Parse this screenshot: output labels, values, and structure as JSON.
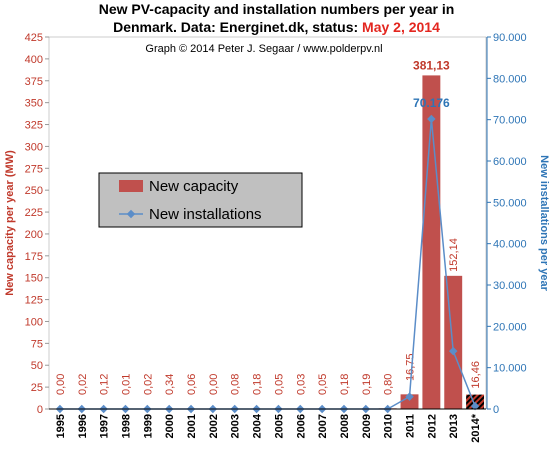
{
  "title_line1": "New PV-capacity and installation numbers per year in",
  "title_line2_prefix": "Denmark. Data: Energinet.dk, status:",
  "title_line2_date": "May 2, 2014",
  "credit": "Graph © 2014 Peter J. Segaar / www.polderpv.nl",
  "colors": {
    "bar": "#c0504d",
    "line": "#5b8dc8",
    "left_axis": "#c0392b",
    "right_axis": "#2e75b6",
    "plot_bg": "#ffffff",
    "legend_bg": "#c0c0c0"
  },
  "chart_data": {
    "type": "bar",
    "categories": [
      "1995",
      "1996",
      "1997",
      "1998",
      "1999",
      "2000",
      "2001",
      "2002",
      "2003",
      "2004",
      "2005",
      "2006",
      "2007",
      "2008",
      "2009",
      "2010",
      "2011",
      "2012",
      "2013",
      "2014*"
    ],
    "series": [
      {
        "name": "New capacity",
        "axis": "left",
        "type": "bar",
        "values": [
          0.0,
          0.02,
          0.12,
          0.01,
          0.02,
          0.34,
          0.06,
          0.0,
          0.08,
          0.18,
          0.05,
          0.03,
          0.05,
          0.18,
          0.19,
          0.8,
          16.75,
          381.13,
          152.14,
          16.46
        ],
        "labels": [
          "0,00",
          "0,02",
          "0,12",
          "0,01",
          "0,02",
          "0,34",
          "0,06",
          "0,00",
          "0,08",
          "0,18",
          "0,05",
          "0,03",
          "0,05",
          "0,18",
          "0,19",
          "0,80",
          "16,75",
          "381,13",
          "152,14",
          "16,46"
        ],
        "hatched_last": true
      },
      {
        "name": "New installations",
        "axis": "right",
        "type": "line",
        "values": [
          0,
          0,
          0,
          0,
          0,
          0,
          0,
          0,
          0,
          0,
          0,
          0,
          0,
          0,
          0,
          0,
          3000,
          70176,
          14000,
          700
        ],
        "highlight_label": "70.176",
        "highlight_index": 17
      }
    ],
    "ylabel": "New capacity per year (MW)",
    "y2label": "New installations per year",
    "ylim": [
      0,
      425
    ],
    "yticks": [
      "0",
      "25",
      "50",
      "75",
      "100",
      "125",
      "150",
      "175",
      "200",
      "225",
      "250",
      "275",
      "300",
      "325",
      "350",
      "375",
      "400",
      "425"
    ],
    "y2lim": [
      0,
      90000
    ],
    "y2ticks": [
      "0",
      "10.000",
      "20.000",
      "30.000",
      "40.000",
      "50.000",
      "60.000",
      "70.000",
      "80.000",
      "90.000"
    ],
    "grid": false,
    "legend_position": "middle-left"
  }
}
